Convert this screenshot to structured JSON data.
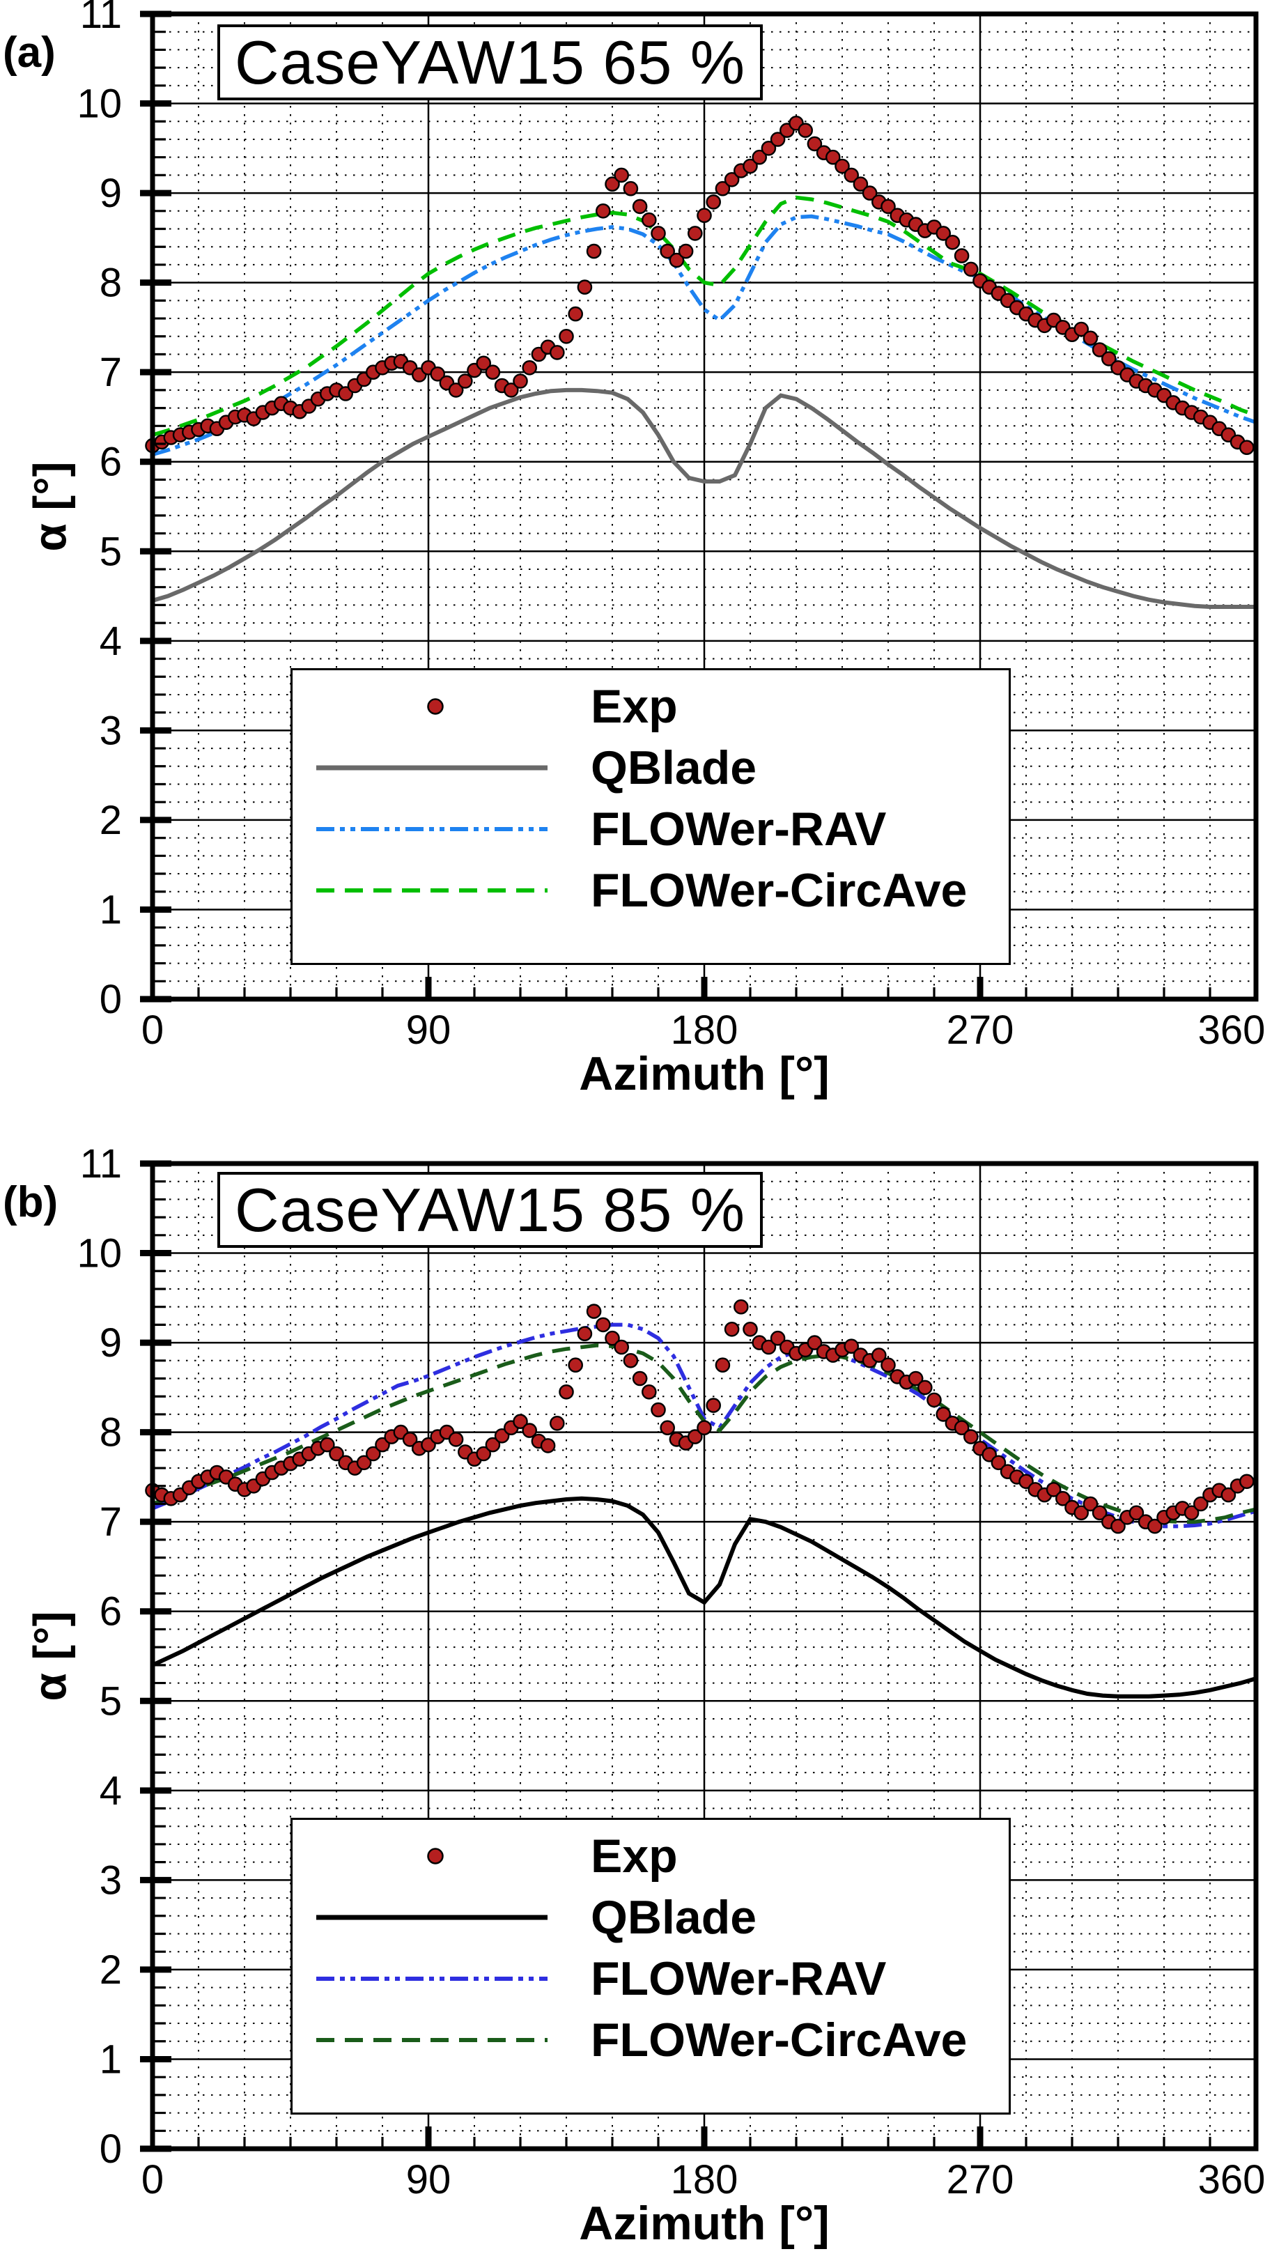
{
  "figure": {
    "background": "#ffffff",
    "panel_a_label": "(a)",
    "panel_b_label": "(b)"
  },
  "chart_data": [
    {
      "type": "line+scatter",
      "panel": "(a)",
      "title": "CaseYAW15 65 %",
      "xlabel": "Azimuth [°]",
      "ylabel": "α [°]",
      "xlim": [
        0,
        360
      ],
      "ylim": [
        0,
        11
      ],
      "xticks": [
        0,
        90,
        180,
        270,
        360
      ],
      "yticks": [
        0,
        1,
        2,
        3,
        4,
        5,
        6,
        7,
        8,
        9,
        10,
        11
      ],
      "minor_x_step": 15,
      "minor_y_step": 0.2,
      "grid": "major-solid-black, minor-dotted-black",
      "legend_position": "inside-lower-left",
      "series": [
        {
          "name": "Exp",
          "type": "scatter",
          "marker": "circle",
          "color": "#B51F1F",
          "edge": "#000000",
          "x_start": 0,
          "x_step": 3,
          "y": [
            6.18,
            6.22,
            6.27,
            6.3,
            6.33,
            6.36,
            6.4,
            6.37,
            6.44,
            6.5,
            6.52,
            6.48,
            6.55,
            6.6,
            6.65,
            6.6,
            6.56,
            6.62,
            6.7,
            6.76,
            6.8,
            6.76,
            6.85,
            6.92,
            7.0,
            7.05,
            7.1,
            7.12,
            7.05,
            6.97,
            7.05,
            6.98,
            6.88,
            6.8,
            6.9,
            7.02,
            7.1,
            7.0,
            6.85,
            6.8,
            6.9,
            7.05,
            7.2,
            7.28,
            7.22,
            7.4,
            7.65,
            7.95,
            8.35,
            8.8,
            9.1,
            9.2,
            9.05,
            8.85,
            8.7,
            8.55,
            8.35,
            8.25,
            8.35,
            8.55,
            8.75,
            8.9,
            9.05,
            9.15,
            9.25,
            9.3,
            9.4,
            9.5,
            9.6,
            9.7,
            9.78,
            9.7,
            9.55,
            9.45,
            9.4,
            9.3,
            9.2,
            9.1,
            9.0,
            8.9,
            8.85,
            8.75,
            8.7,
            8.65,
            8.58,
            8.62,
            8.55,
            8.45,
            8.3,
            8.15,
            8.02,
            7.95,
            7.88,
            7.8,
            7.72,
            7.65,
            7.58,
            7.52,
            7.58,
            7.5,
            7.42,
            7.48,
            7.38,
            7.25,
            7.15,
            7.05,
            6.97,
            6.9,
            6.85,
            6.8,
            6.74,
            6.66,
            6.6,
            6.55,
            6.5,
            6.44,
            6.37,
            6.3,
            6.22,
            6.16
          ]
        },
        {
          "name": "QBlade",
          "type": "line",
          "style": "solid",
          "color": "#696969",
          "width": 6,
          "x_start": 0,
          "x_step": 5,
          "y": [
            4.45,
            4.5,
            4.57,
            4.65,
            4.73,
            4.82,
            4.92,
            5.02,
            5.13,
            5.25,
            5.37,
            5.5,
            5.62,
            5.75,
            5.88,
            6.0,
            6.1,
            6.2,
            6.28,
            6.36,
            6.44,
            6.52,
            6.6,
            6.66,
            6.72,
            6.76,
            6.79,
            6.8,
            6.8,
            6.79,
            6.77,
            6.7,
            6.55,
            6.3,
            6.0,
            5.82,
            5.78,
            5.78,
            5.85,
            6.2,
            6.6,
            6.74,
            6.7,
            6.6,
            6.48,
            6.35,
            6.22,
            6.1,
            5.97,
            5.85,
            5.72,
            5.6,
            5.48,
            5.37,
            5.26,
            5.16,
            5.06,
            4.97,
            4.88,
            4.8,
            4.73,
            4.66,
            4.6,
            4.55,
            4.5,
            4.46,
            4.43,
            4.41,
            4.39,
            4.38,
            4.38,
            4.38,
            4.38
          ]
        },
        {
          "name": "FLOWer-RAV",
          "type": "line",
          "style": "dash-dot-dot",
          "color": "#1E82F0",
          "width": 5.5,
          "x_start": 0,
          "x_step": 5,
          "y": [
            6.08,
            6.13,
            6.19,
            6.25,
            6.32,
            6.4,
            6.48,
            6.57,
            6.66,
            6.76,
            6.86,
            6.97,
            7.08,
            7.2,
            7.32,
            7.44,
            7.56,
            7.68,
            7.8,
            7.91,
            8.01,
            8.11,
            8.2,
            8.28,
            8.35,
            8.42,
            8.48,
            8.53,
            8.57,
            8.6,
            8.62,
            8.6,
            8.54,
            8.42,
            8.22,
            7.95,
            7.7,
            7.58,
            7.75,
            8.1,
            8.45,
            8.65,
            8.73,
            8.74,
            8.71,
            8.67,
            8.63,
            8.58,
            8.54,
            8.46,
            8.37,
            8.28,
            8.2,
            8.12,
            8.05,
            7.95,
            7.85,
            7.74,
            7.63,
            7.52,
            7.42,
            7.32,
            7.22,
            7.12,
            7.03,
            6.95,
            6.87,
            6.79,
            6.71,
            6.64,
            6.57,
            6.5,
            6.44
          ]
        },
        {
          "name": "FLOWer-CircAve",
          "type": "line",
          "style": "dashed",
          "color": "#00BE00",
          "width": 5.5,
          "x_start": 0,
          "x_step": 5,
          "y": [
            6.3,
            6.35,
            6.41,
            6.47,
            6.54,
            6.61,
            6.68,
            6.76,
            6.85,
            6.95,
            7.05,
            7.17,
            7.29,
            7.42,
            7.55,
            7.69,
            7.83,
            7.97,
            8.1,
            8.2,
            8.29,
            8.37,
            8.44,
            8.5,
            8.56,
            8.61,
            8.65,
            8.69,
            8.73,
            8.76,
            8.78,
            8.76,
            8.69,
            8.56,
            8.38,
            8.15,
            8.0,
            7.97,
            8.16,
            8.42,
            8.68,
            8.88,
            8.95,
            8.93,
            8.89,
            8.84,
            8.79,
            8.74,
            8.68,
            8.58,
            8.46,
            8.34,
            8.22,
            8.16,
            8.1,
            8.0,
            7.9,
            7.79,
            7.68,
            7.59,
            7.5,
            7.4,
            7.3,
            7.21,
            7.12,
            7.04,
            6.96,
            6.88,
            6.8,
            6.73,
            6.66,
            6.58,
            6.52
          ]
        }
      ]
    },
    {
      "type": "line+scatter",
      "panel": "(b)",
      "title": "CaseYAW15 85 %",
      "xlabel": "Azimuth [°]",
      "ylabel": "α [°]",
      "xlim": [
        0,
        360
      ],
      "ylim": [
        0,
        11
      ],
      "xticks": [
        0,
        90,
        180,
        270,
        360
      ],
      "yticks": [
        0,
        1,
        2,
        3,
        4,
        5,
        6,
        7,
        8,
        9,
        10,
        11
      ],
      "minor_x_step": 15,
      "minor_y_step": 0.2,
      "grid": "major-solid-black, minor-dotted-black",
      "legend_position": "inside-lower-left",
      "series": [
        {
          "name": "Exp",
          "type": "scatter",
          "marker": "circle",
          "color": "#B51F1F",
          "edge": "#000000",
          "x_start": 0,
          "x_step": 3,
          "y": [
            7.35,
            7.3,
            7.26,
            7.3,
            7.38,
            7.45,
            7.5,
            7.55,
            7.5,
            7.42,
            7.36,
            7.4,
            7.48,
            7.55,
            7.6,
            7.65,
            7.7,
            7.76,
            7.82,
            7.86,
            7.76,
            7.66,
            7.6,
            7.66,
            7.76,
            7.86,
            7.95,
            8.0,
            7.92,
            7.82,
            7.86,
            7.95,
            8.0,
            7.92,
            7.78,
            7.7,
            7.76,
            7.86,
            7.96,
            8.05,
            8.12,
            8.02,
            7.9,
            7.85,
            8.1,
            8.45,
            8.75,
            9.1,
            9.35,
            9.2,
            9.05,
            8.95,
            8.8,
            8.6,
            8.45,
            8.25,
            8.05,
            7.92,
            7.88,
            7.95,
            8.05,
            8.3,
            8.75,
            9.15,
            9.4,
            9.15,
            9.0,
            8.95,
            9.05,
            8.95,
            8.88,
            8.92,
            9.0,
            8.9,
            8.86,
            8.92,
            8.96,
            8.86,
            8.8,
            8.86,
            8.75,
            8.62,
            8.56,
            8.6,
            8.5,
            8.36,
            8.2,
            8.1,
            8.05,
            7.95,
            7.82,
            7.75,
            7.66,
            7.56,
            7.5,
            7.45,
            7.36,
            7.3,
            7.36,
            7.26,
            7.16,
            7.1,
            7.2,
            7.1,
            7.0,
            6.95,
            7.05,
            7.1,
            7.0,
            6.95,
            7.05,
            7.1,
            7.15,
            7.1,
            7.2,
            7.3,
            7.35,
            7.3,
            7.4,
            7.45
          ]
        },
        {
          "name": "QBlade",
          "type": "line",
          "style": "solid",
          "color": "#000000",
          "width": 6,
          "x_start": 0,
          "x_step": 5,
          "y": [
            5.4,
            5.48,
            5.56,
            5.65,
            5.74,
            5.83,
            5.92,
            6.01,
            6.1,
            6.19,
            6.28,
            6.37,
            6.45,
            6.53,
            6.61,
            6.68,
            6.75,
            6.82,
            6.88,
            6.94,
            7.0,
            7.05,
            7.1,
            7.14,
            7.18,
            7.21,
            7.23,
            7.25,
            7.26,
            7.25,
            7.23,
            7.18,
            7.08,
            6.88,
            6.55,
            6.2,
            6.1,
            6.3,
            6.75,
            7.03,
            7.0,
            6.94,
            6.86,
            6.78,
            6.68,
            6.58,
            6.48,
            6.38,
            6.27,
            6.15,
            6.02,
            5.9,
            5.78,
            5.66,
            5.56,
            5.46,
            5.38,
            5.3,
            5.23,
            5.17,
            5.12,
            5.08,
            5.06,
            5.05,
            5.05,
            5.05,
            5.06,
            5.07,
            5.09,
            5.12,
            5.16,
            5.2,
            5.25
          ]
        },
        {
          "name": "FLOWer-RAV",
          "type": "line",
          "style": "dash-dot-dot",
          "color": "#2E2EE0",
          "width": 5.5,
          "x_start": 0,
          "x_step": 5,
          "y": [
            7.15,
            7.22,
            7.29,
            7.37,
            7.45,
            7.53,
            7.61,
            7.7,
            7.78,
            7.87,
            7.96,
            8.06,
            8.15,
            8.25,
            8.34,
            8.43,
            8.52,
            8.57,
            8.63,
            8.7,
            8.77,
            8.84,
            8.9,
            8.96,
            9.01,
            9.06,
            9.1,
            9.13,
            9.16,
            9.18,
            9.2,
            9.2,
            9.15,
            9.05,
            8.85,
            8.5,
            8.15,
            8.05,
            8.3,
            8.55,
            8.72,
            8.84,
            8.9,
            8.92,
            8.9,
            8.85,
            8.78,
            8.7,
            8.62,
            8.52,
            8.42,
            8.3,
            8.18,
            8.05,
            7.92,
            7.8,
            7.68,
            7.56,
            7.45,
            7.35,
            7.26,
            7.18,
            7.11,
            7.05,
            7.0,
            6.97,
            6.95,
            6.95,
            6.96,
            6.98,
            7.02,
            7.07,
            7.12
          ]
        },
        {
          "name": "FLOWer-CircAve",
          "type": "line",
          "style": "dashed",
          "color": "#1A5C1A",
          "width": 5.5,
          "x_start": 0,
          "x_step": 5,
          "y": [
            7.2,
            7.26,
            7.32,
            7.38,
            7.44,
            7.5,
            7.57,
            7.64,
            7.71,
            7.78,
            7.86,
            7.94,
            8.02,
            8.1,
            8.18,
            8.26,
            8.33,
            8.4,
            8.46,
            8.52,
            8.58,
            8.64,
            8.7,
            8.76,
            8.81,
            8.86,
            8.9,
            8.93,
            8.95,
            8.97,
            8.96,
            8.93,
            8.88,
            8.78,
            8.6,
            8.35,
            8.12,
            8.02,
            8.22,
            8.45,
            8.62,
            8.73,
            8.8,
            8.84,
            8.86,
            8.84,
            8.8,
            8.74,
            8.66,
            8.57,
            8.47,
            8.36,
            8.24,
            8.12,
            8.0,
            7.88,
            7.76,
            7.64,
            7.53,
            7.43,
            7.34,
            7.26,
            7.19,
            7.13,
            7.08,
            7.04,
            7.01,
            7.0,
            7.0,
            7.02,
            7.05,
            7.1,
            7.14
          ]
        }
      ]
    }
  ]
}
